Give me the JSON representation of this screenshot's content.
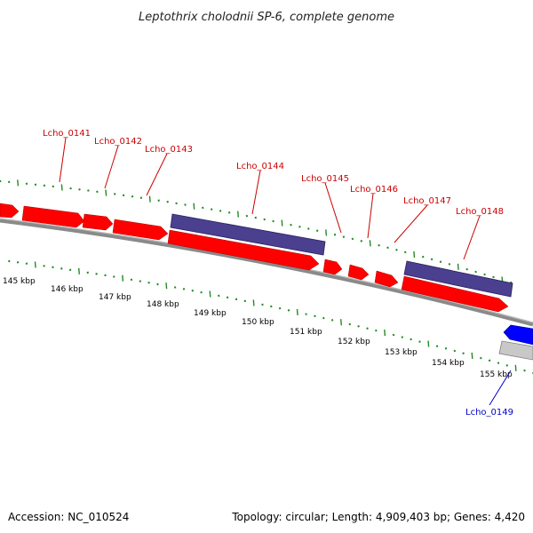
{
  "title": "Leptothrix cholodnii SP-6, complete genome",
  "accession": "Accession: NC_010524",
  "summary": "Topology: circular; Length: 4,909,403 bp; Genes: 4,420",
  "colors": {
    "background": "#ffffff",
    "backbone": "#888888",
    "tick": "#228b22",
    "cds": "#ff0000",
    "gene": "#4b3f8f",
    "highlight_cds": "#0000ff",
    "highlight_gene": "#c0c0c0",
    "label_red": "#cc0000",
    "label_blue": "#0000cc"
  },
  "axis": {
    "tick_labels": [
      "145 kbp",
      "146 kbp",
      "147 kbp",
      "148 kbp",
      "149 kbp",
      "150 kbp",
      "151 kbp",
      "152 kbp",
      "153 kbp",
      "154 kbp",
      "155 kbp"
    ]
  },
  "gene_labels": [
    {
      "text": "Lcho_0141",
      "color": "red"
    },
    {
      "text": "Lcho_0142",
      "color": "red"
    },
    {
      "text": "Lcho_0143",
      "color": "red"
    },
    {
      "text": "Lcho_0144",
      "color": "red"
    },
    {
      "text": "Lcho_0145",
      "color": "red"
    },
    {
      "text": "Lcho_0146",
      "color": "red"
    },
    {
      "text": "Lcho_0147",
      "color": "red"
    },
    {
      "text": "Lcho_0148",
      "color": "red"
    },
    {
      "text": "Lcho_0149",
      "color": "blue"
    }
  ]
}
